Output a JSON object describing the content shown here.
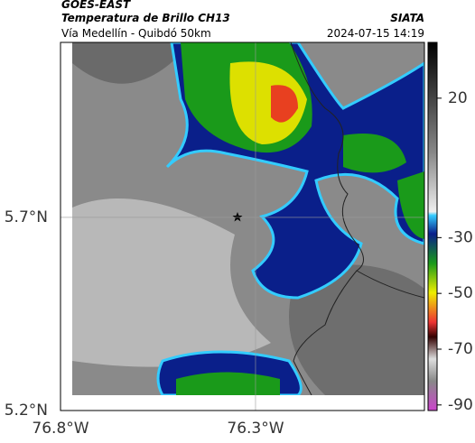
{
  "header": {
    "title": "GOES-EAST",
    "subtitle": "Temperatura de Brillo CH13",
    "source": "SIATA",
    "region": "Vía Medellín - Quibdó 50km",
    "datetime": "2024-07-15 14:19"
  },
  "map": {
    "xlim": [
      -76.8,
      -75.867
    ],
    "ylim": [
      5.2,
      6.153
    ],
    "xticks": [
      {
        "value": -76.8,
        "label": "76.8°W"
      },
      {
        "value": -76.3,
        "label": "76.3°W"
      }
    ],
    "yticks": [
      {
        "value": 5.2,
        "label": "5.2°N"
      },
      {
        "value": 5.7,
        "label": "5.7°N"
      }
    ]
  },
  "colorbar": {
    "lim": [
      -92,
      40
    ],
    "ticks": [
      20,
      -30,
      -50,
      -70,
      -90
    ]
  }
}
